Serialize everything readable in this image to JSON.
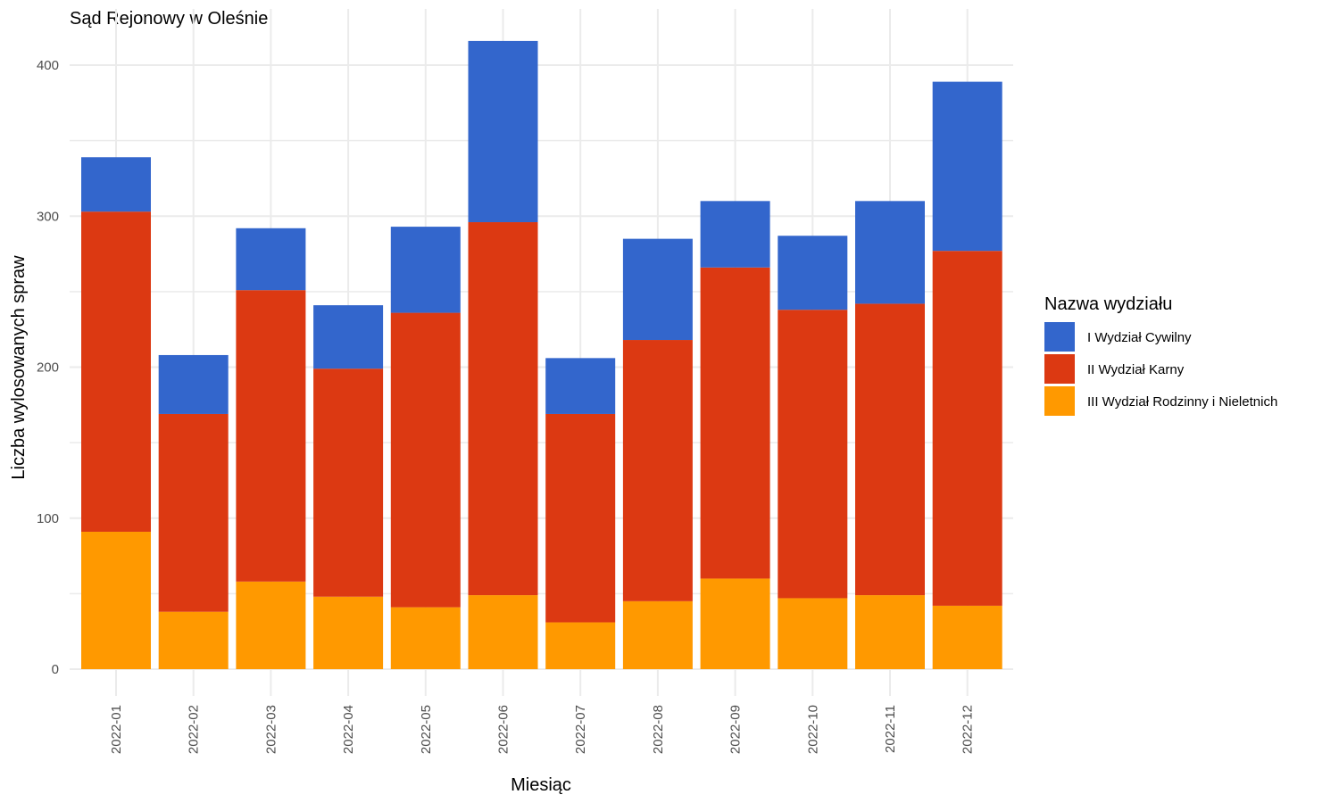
{
  "chart_data": {
    "type": "bar",
    "stacked": true,
    "title": "Sąd Rejonowy w Oleśnie",
    "xlabel": "Miesiąc",
    "ylabel": "Liczba wylosowanych spraw",
    "ylim": [
      0,
      430
    ],
    "yticks": [
      0,
      100,
      200,
      300,
      400
    ],
    "grid": true,
    "legend": {
      "title": "Nazwa wydziału",
      "position": "right"
    },
    "categories": [
      "2022-01",
      "2022-02",
      "2022-03",
      "2022-04",
      "2022-05",
      "2022-06",
      "2022-07",
      "2022-08",
      "2022-09",
      "2022-10",
      "2022-11",
      "2022-12"
    ],
    "series": [
      {
        "name": "III Wydział Rodzinny i Nieletnich",
        "color": "#ff9900",
        "values": [
          91,
          38,
          58,
          48,
          41,
          49,
          31,
          45,
          60,
          47,
          49,
          42
        ]
      },
      {
        "name": "II Wydział Karny",
        "color": "#dc3912",
        "values": [
          212,
          131,
          193,
          151,
          195,
          247,
          138,
          173,
          206,
          191,
          193,
          235
        ]
      },
      {
        "name": "I Wydział Cywilny",
        "color": "#3366cc",
        "values": [
          36,
          39,
          41,
          42,
          57,
          120,
          37,
          67,
          44,
          49,
          68,
          112
        ]
      }
    ],
    "legend_order": [
      "I Wydział Cywilny",
      "II Wydział Karny",
      "III Wydział Rodzinny i Nieletnich"
    ]
  }
}
